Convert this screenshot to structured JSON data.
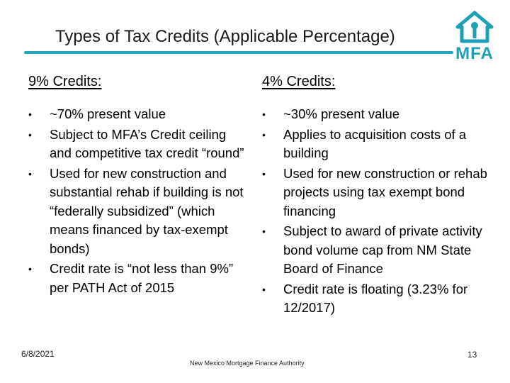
{
  "slide": {
    "title": "Types of Tax Credits (Applicable Percentage)",
    "logo_text": "MFA",
    "accent_color": "#22a7b8"
  },
  "left": {
    "heading": "9% Credits",
    "heading_suffix": ":",
    "bullets": [
      "~70% present value",
      "Subject to MFA’s Credit ceiling and competitive tax credit “round”",
      "Used for new construction and substantial rehab if building is not “federally subsidized” (which means financed by tax-exempt bonds)",
      "Credit rate is “not less than 9%” per PATH Act of 2015"
    ]
  },
  "right": {
    "heading": "4% Credits",
    "heading_suffix": ":",
    "bullets": [
      "~30% present value",
      "Applies to acquisition costs of a building",
      "Used for new construction or rehab projects using tax exempt bond financing",
      "Subject to award of private activity bond volume cap from NM State Board of Finance",
      "Credit rate is floating (3.23% for 12/2017)"
    ]
  },
  "footer": {
    "date": "6/8/2021",
    "organization": "New Mexico Mortgage Finance Authority",
    "page_number": "13"
  }
}
